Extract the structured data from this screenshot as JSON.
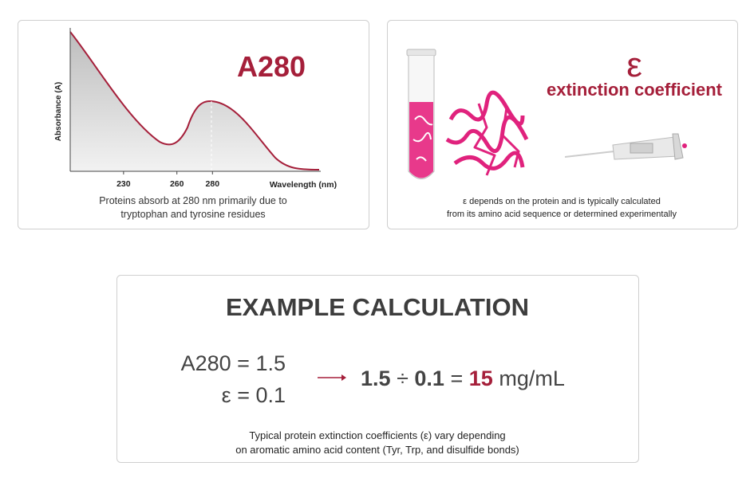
{
  "spectrum": {
    "title": "A280",
    "y_label": "Absorbance (A)",
    "x_label": "Wavelength (nm)",
    "xlim": [
      200,
      340
    ],
    "xticks": [
      230,
      260,
      280
    ],
    "caption": [
      "Proteins absorb at 280 nm primarily due to",
      "tryptophan and tyrosine residues"
    ]
  },
  "coefficient": {
    "symbol": "ε",
    "title": "extinction coefficient",
    "caption": [
      "ε depends on the protein and is typically calculated",
      "from its amino acid sequence or determined experimentally"
    ]
  },
  "calculation": {
    "title": "EXAMPLE CALCULATION",
    "given": [
      "A280 = 1.5",
      "ε = 0.1"
    ],
    "dividend": "1.5",
    "divide": "÷",
    "divisor": "0.1",
    "equals": "=",
    "result": "15",
    "unit": "mg/mL",
    "note": [
      "Typical protein extinction coefficients (ε) vary depending",
      "on aromatic amino acid content (Tyr, Trp, and disulfide bonds)"
    ]
  }
}
